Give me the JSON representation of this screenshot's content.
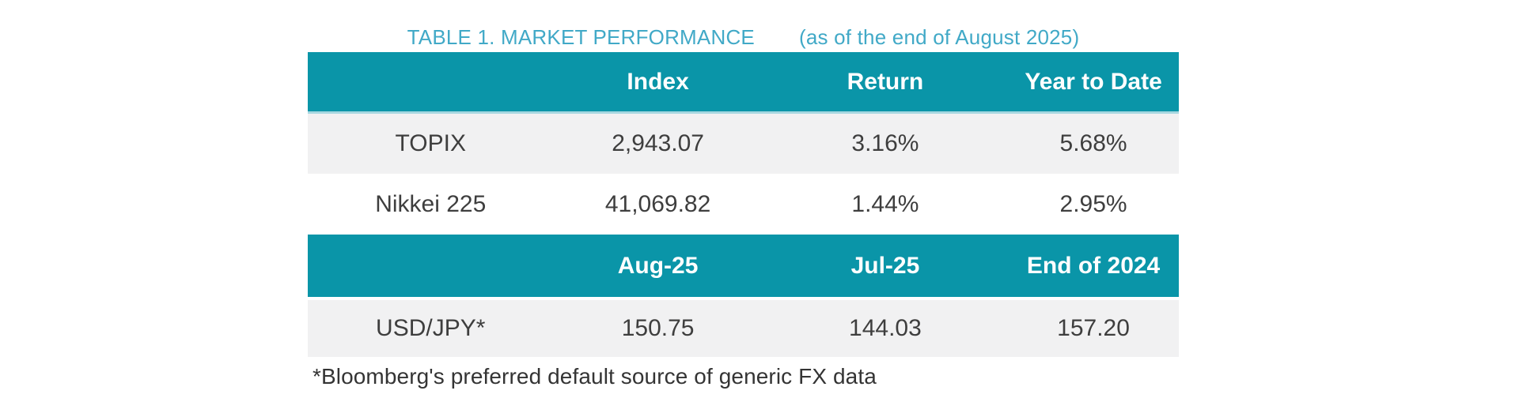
{
  "title": {
    "main": "TABLE 1. MARKET PERFORMANCE",
    "date_note": "(as of the end of August 2025)"
  },
  "colors": {
    "header_teal": "#0A95A8",
    "header_separator": "#A6D7E0",
    "title_teal": "#41A9C7",
    "row_stripe_gray": "#F1F1F2",
    "body_text": "#3E3E3E",
    "header_text": "#FFFFFF"
  },
  "market_table": {
    "headers": [
      "",
      "Index",
      "Return",
      "Year to Date"
    ],
    "rows": [
      {
        "label": "TOPIX",
        "values": [
          "2,943.07",
          "3.16%",
          "5.68%"
        ]
      },
      {
        "label": "Nikkei 225",
        "values": [
          "41,069.82",
          "1.44%",
          "2.95%"
        ]
      }
    ]
  },
  "fx_table": {
    "headers": [
      "",
      "Aug-25",
      "Jul-25",
      "End of 2024"
    ],
    "rows": [
      {
        "label": "USD/JPY*",
        "values": [
          "150.75",
          "144.03",
          "157.20"
        ]
      }
    ]
  },
  "footnote": "*Bloomberg's preferred default source of generic FX data"
}
